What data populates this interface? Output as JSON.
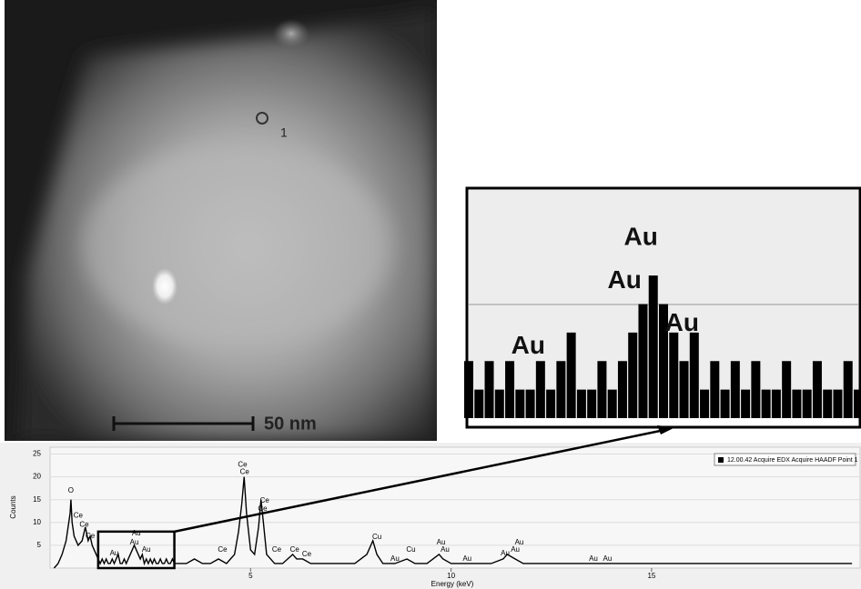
{
  "image": {
    "scale_bar_label": "50 nm",
    "point_label": "1"
  },
  "chart_data": {
    "type": "line",
    "x_label": "Energy (keV)",
    "y_label": "Counts",
    "xlim": [
      0,
      20.2
    ],
    "ylim": [
      0,
      26.5
    ],
    "xticks": [
      5,
      10,
      15
    ],
    "yticks": [
      5,
      10,
      15,
      20,
      25
    ],
    "grid": true,
    "legend": "upper right",
    "series": [
      {
        "name": "12.00.42 Acquire EDX Acquire HAADF Point 1",
        "color": "#000000",
        "x": [
          0.1,
          0.2,
          0.3,
          0.4,
          0.5,
          0.52,
          0.55,
          0.6,
          0.7,
          0.8,
          0.88,
          0.95,
          1.0,
          1.05,
          1.1,
          1.15,
          1.2,
          1.25,
          1.3,
          1.35,
          1.4,
          1.45,
          1.5,
          1.55,
          1.6,
          1.65,
          1.7,
          1.75,
          1.8,
          1.85,
          1.9,
          1.95,
          2.0,
          2.05,
          2.1,
          2.15,
          2.2,
          2.25,
          2.3,
          2.35,
          2.4,
          2.45,
          2.5,
          2.55,
          2.6,
          2.65,
          2.7,
          2.75,
          2.8,
          2.85,
          2.9,
          2.95,
          3.0,
          3.05,
          3.1,
          3.2,
          3.4,
          3.6,
          3.8,
          4.0,
          4.2,
          4.4,
          4.6,
          4.7,
          4.78,
          4.84,
          4.9,
          5.0,
          5.1,
          5.2,
          5.26,
          5.32,
          5.4,
          5.6,
          5.8,
          6.05,
          6.15,
          6.3,
          6.5,
          6.8,
          7.0,
          7.3,
          7.6,
          7.9,
          8.05,
          8.15,
          8.3,
          8.6,
          8.9,
          9.1,
          9.4,
          9.7,
          9.8,
          10.0,
          10.5,
          11.0,
          11.3,
          11.4,
          11.6,
          11.8,
          12.5,
          13.0,
          13.4,
          13.8,
          14.5,
          15.0,
          16.0,
          17.0,
          18.0,
          19.0,
          20.0
        ],
        "values": [
          0,
          1,
          3,
          6,
          12,
          15,
          10,
          7,
          5,
          6,
          9,
          6,
          7,
          5,
          4,
          3,
          2,
          1,
          2,
          1,
          2,
          1,
          1,
          2,
          1,
          2,
          3,
          1,
          1,
          2,
          1,
          2,
          3,
          4,
          5,
          4,
          3,
          2,
          3,
          1,
          2,
          1,
          2,
          1,
          2,
          1,
          1,
          2,
          1,
          1,
          2,
          1,
          1,
          2,
          1,
          1,
          1,
          2,
          1,
          1,
          2,
          1,
          3,
          8,
          14,
          20,
          12,
          4,
          3,
          9,
          15,
          10,
          3,
          1,
          1,
          3,
          2,
          2,
          1,
          1,
          1,
          1,
          1,
          3,
          6,
          3,
          1,
          1,
          2,
          1,
          1,
          3,
          2,
          1,
          1,
          1,
          2,
          3,
          2,
          1,
          1,
          1,
          1,
          1,
          1,
          1,
          1,
          1,
          1,
          1,
          1
        ]
      }
    ],
    "annotations": [
      {
        "label": "O",
        "x": 0.52,
        "y": 17
      },
      {
        "label": "Ce",
        "x": 0.7,
        "y": 11.5
      },
      {
        "label": "Ce",
        "x": 0.85,
        "y": 9.5
      },
      {
        "label": "Ce",
        "x": 1.0,
        "y": 7
      },
      {
        "label": "Au",
        "x": 1.6,
        "y": 3.2
      },
      {
        "label": "Au",
        "x": 2.15,
        "y": 7.6
      },
      {
        "label": "Au",
        "x": 2.1,
        "y": 5.6
      },
      {
        "label": "Au",
        "x": 2.4,
        "y": 4
      },
      {
        "label": "Ce",
        "x": 4.3,
        "y": 4
      },
      {
        "label": "Ce",
        "x": 4.8,
        "y": 22.6
      },
      {
        "label": "Ce",
        "x": 4.85,
        "y": 21
      },
      {
        "label": "Ce",
        "x": 5.35,
        "y": 14.8
      },
      {
        "label": "Ce",
        "x": 5.3,
        "y": 13
      },
      {
        "label": "Ce",
        "x": 5.65,
        "y": 4
      },
      {
        "label": "Ce",
        "x": 6.1,
        "y": 4
      },
      {
        "label": "Ce",
        "x": 6.4,
        "y": 3
      },
      {
        "label": "Cu",
        "x": 8.15,
        "y": 6.8
      },
      {
        "label": "Au",
        "x": 8.6,
        "y": 2
      },
      {
        "label": "Cu",
        "x": 9.0,
        "y": 4
      },
      {
        "label": "Au",
        "x": 9.75,
        "y": 5.6
      },
      {
        "label": "Au",
        "x": 9.85,
        "y": 4
      },
      {
        "label": "Au",
        "x": 10.4,
        "y": 2
      },
      {
        "label": "Au",
        "x": 11.35,
        "y": 3.2
      },
      {
        "label": "Au",
        "x": 11.6,
        "y": 4
      },
      {
        "label": "Au",
        "x": 11.7,
        "y": 5.6
      },
      {
        "label": "Au",
        "x": 13.55,
        "y": 2
      },
      {
        "label": "Au",
        "x": 13.9,
        "y": 2
      }
    ],
    "zoom": {
      "xlim": [
        1.2,
        3.1
      ],
      "ylim": [
        0,
        8
      ]
    },
    "inset_annotations": [
      {
        "label": "Au",
        "x": 2.04,
        "y": 6.3
      },
      {
        "label": "Au",
        "x": 1.96,
        "y": 4.8
      },
      {
        "label": "Au",
        "x": 2.24,
        "y": 3.3
      },
      {
        "label": "Au",
        "x": 1.49,
        "y": 2.5
      }
    ]
  }
}
